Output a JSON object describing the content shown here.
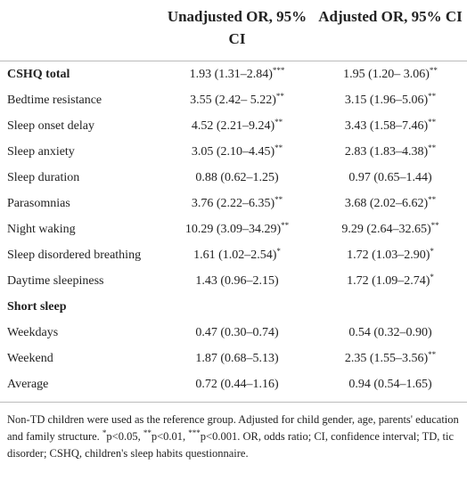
{
  "table": {
    "headers": [
      "Unadjusted OR, 95% CI",
      "Adjusted OR, 95% CI"
    ],
    "rows": [
      {
        "label": "CSHQ total",
        "bold": true,
        "cells": [
          {
            "text": "1.93 (1.31–2.84)",
            "sup": "***"
          },
          {
            "text": "1.95 (1.20– 3.06)",
            "sup": "**"
          }
        ]
      },
      {
        "label": "Bedtime resistance",
        "cells": [
          {
            "text": "3.55 (2.42– 5.22)",
            "sup": "**"
          },
          {
            "text": "3.15 (1.96–5.06)",
            "sup": "**"
          }
        ]
      },
      {
        "label": "Sleep onset delay",
        "cells": [
          {
            "text": "4.52 (2.21–9.24)",
            "sup": "**"
          },
          {
            "text": "3.43 (1.58–7.46)",
            "sup": "**"
          }
        ]
      },
      {
        "label": "Sleep anxiety",
        "cells": [
          {
            "text": "3.05 (2.10–4.45)",
            "sup": "**"
          },
          {
            "text": "2.83 (1.83–4.38)",
            "sup": "**"
          }
        ]
      },
      {
        "label": "Sleep duration",
        "cells": [
          {
            "text": "0.88 (0.62–1.25)"
          },
          {
            "text": "0.97 (0.65–1.44)"
          }
        ]
      },
      {
        "label": "Parasomnias",
        "cells": [
          {
            "text": "3.76 (2.22–6.35)",
            "sup": "**"
          },
          {
            "text": "3.68 (2.02–6.62)",
            "sup": "**"
          }
        ]
      },
      {
        "label": "Night waking",
        "cells": [
          {
            "text": "10.29 (3.09–34.29)",
            "sup": "**"
          },
          {
            "text": "9.29 (2.64–32.65)",
            "sup": "**"
          }
        ]
      },
      {
        "label": "Sleep disordered breathing",
        "cells": [
          {
            "text": "1.61 (1.02–2.54)",
            "sup": "*"
          },
          {
            "text": "1.72 (1.03–2.90)",
            "sup": "*"
          }
        ]
      },
      {
        "label": "Daytime sleepiness",
        "cells": [
          {
            "text": "1.43 (0.96–2.15)"
          },
          {
            "text": "1.72 (1.09–2.74)",
            "sup": "*"
          }
        ]
      },
      {
        "label": "Short sleep",
        "bold": true,
        "cells": []
      },
      {
        "label": "Weekdays",
        "cells": [
          {
            "text": "0.47 (0.30–0.74)"
          },
          {
            "text": "0.54 (0.32–0.90)"
          }
        ]
      },
      {
        "label": "Weekend",
        "cells": [
          {
            "text": "1.87 (0.68–5.13)"
          },
          {
            "text": "2.35 (1.55–3.56)",
            "sup": "**"
          }
        ]
      },
      {
        "label": "Average",
        "cells": [
          {
            "text": "0.72 (0.44–1.16)"
          },
          {
            "text": "0.94 (0.54–1.65)"
          }
        ]
      }
    ],
    "footnote": [
      {
        "text": "Non-TD children were used as the reference group. Adjusted for child gender, age, parents' education and family structure. "
      },
      {
        "sup": "*"
      },
      {
        "text": "p<0.05, "
      },
      {
        "sup": "**"
      },
      {
        "text": "p<0.01, "
      },
      {
        "sup": "***"
      },
      {
        "text": "p<0.001. OR, odds ratio; CI, confidence interval; TD, tic disorder; CSHQ, children's sleep habits questionnaire."
      }
    ]
  }
}
